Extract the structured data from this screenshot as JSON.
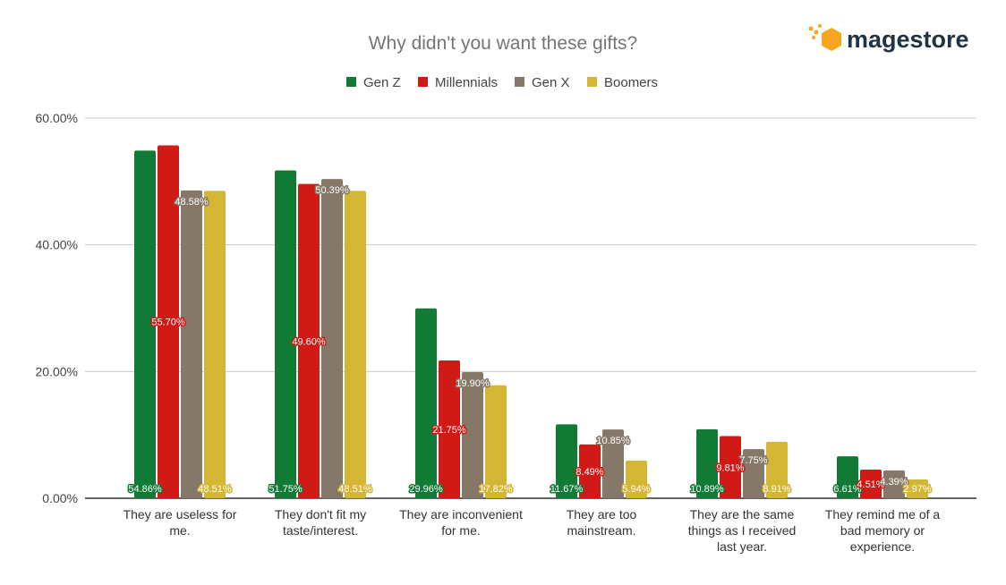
{
  "logo": {
    "text": "magestore",
    "icon": "orange-hexagon-icon",
    "color": "#f5a623"
  },
  "chart_data": {
    "type": "bar",
    "title": "Why didn't you want these gifts?",
    "xlabel": "",
    "ylabel": "",
    "ylim": [
      0,
      60
    ],
    "yticks": [
      "0.00%",
      "20.00%",
      "40.00%",
      "60.00%"
    ],
    "grid": true,
    "legend_position": "top",
    "categories": [
      [
        "They are useless for",
        "me."
      ],
      [
        "They don't fit my",
        "taste/interest."
      ],
      [
        "They are inconvenient",
        "for me."
      ],
      [
        "They are too",
        "mainstream."
      ],
      [
        "They are the same",
        "things as I received",
        "last year."
      ],
      [
        "They remind me of a",
        "bad memory or",
        "experience."
      ]
    ],
    "series": [
      {
        "name": "Gen Z",
        "color": "#117a35",
        "values": [
          54.86,
          51.75,
          29.96,
          11.67,
          10.89,
          6.61
        ],
        "labels": [
          "54.86%",
          "51.75%",
          "29.96%",
          "11.67%",
          "10.89%",
          "6.61%"
        ]
      },
      {
        "name": "Millennials",
        "color": "#cf1a16",
        "values": [
          55.7,
          49.6,
          21.75,
          8.49,
          9.81,
          4.51
        ],
        "labels": [
          "55.70%",
          "49.60%",
          "21.75%",
          "8.49%",
          "9.81%",
          "4.51%"
        ]
      },
      {
        "name": "Gen X",
        "color": "#857868",
        "values": [
          48.58,
          50.39,
          19.9,
          10.85,
          7.75,
          4.39
        ],
        "labels": [
          "48.58%",
          "50.39%",
          "19.90%",
          "10.85%",
          "7.75%",
          "4.39%"
        ]
      },
      {
        "name": "Boomers",
        "color": "#d4b634",
        "values": [
          48.51,
          48.51,
          17.82,
          5.94,
          8.91,
          2.97
        ],
        "labels": [
          "48.51%",
          "48.51%",
          "17.82%",
          "5.94%",
          "8.91%",
          "2.97%"
        ]
      }
    ]
  }
}
